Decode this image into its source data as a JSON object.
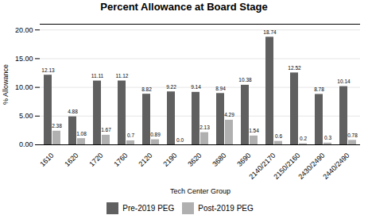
{
  "chart_data": {
    "type": "bar",
    "title": "Percent Allowance at Board Stage",
    "xlabel": "Tech Center Group",
    "ylabel": "% Allowance",
    "categories": [
      "1610",
      "1620",
      "1720",
      "1760",
      "2120",
      "2190",
      "3620",
      "3680",
      "3690",
      "2140/2170",
      "2150/2160",
      "2430/2490",
      "2440/2490"
    ],
    "series": [
      {
        "name": "Pre-2019 PEG",
        "color": "#606060",
        "values": [
          12.13,
          4.88,
          11.11,
          11.12,
          8.82,
          9.22,
          9.14,
          8.94,
          10.38,
          18.74,
          12.52,
          8.78,
          10.14
        ],
        "value_labels": [
          "12.13",
          "4.88",
          "11.11",
          "11.12",
          "8.82",
          "9.22",
          "9.14",
          "8.94",
          "10.38",
          "18.74",
          "12.52",
          "8.78",
          "10.14"
        ]
      },
      {
        "name": "Post-2019 PEG",
        "color": "#b0b0b0",
        "values": [
          2.38,
          1.08,
          1.67,
          0.7,
          0.89,
          0.0,
          2.13,
          4.29,
          1.54,
          0.6,
          0.2,
          0.3,
          0.78
        ],
        "value_labels": [
          "2.38",
          "1.08",
          "1.67",
          "0.7",
          "0.89",
          "0.0",
          "2.13",
          "4.29",
          "1.54",
          "0.6",
          "0.2",
          "0.3",
          "0.78"
        ]
      }
    ],
    "ylim": [
      0,
      21
    ],
    "yticks": [
      {
        "value": 0,
        "label": "0.00"
      },
      {
        "value": 5,
        "label": "5.00"
      },
      {
        "value": 10,
        "label": "10.00"
      },
      {
        "value": 15,
        "label": "15.00"
      },
      {
        "value": 20,
        "label": "20.00"
      }
    ],
    "grid": true,
    "legend": "bottom",
    "data_labels": true
  }
}
